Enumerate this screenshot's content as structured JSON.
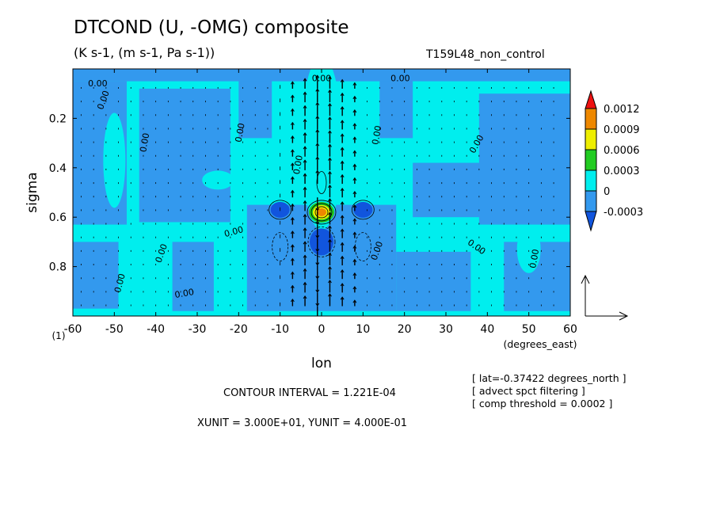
{
  "chart_data": {
    "type": "heatmap",
    "title": "DTCOND (U, -OMG) composite",
    "subtitle": "(K s-1, (m s-1, Pa s-1))",
    "run_label": "T159L48_non_control",
    "xlabel": "lon",
    "x_units": "(degrees_east)",
    "ylabel": "sigma",
    "corner_label": "(1)",
    "xlim": [
      -60,
      60
    ],
    "ylim": [
      1.0,
      0.0
    ],
    "x_ticks": [
      -60,
      -50,
      -40,
      -30,
      -20,
      -10,
      0,
      10,
      20,
      30,
      40,
      50,
      60
    ],
    "x_tick_labels": [
      "-60",
      "-50",
      "-40",
      "-30",
      "-20",
      "-10",
      "0",
      "10",
      "20",
      "30",
      "40",
      "50",
      "60"
    ],
    "y_ticks": [
      0.2,
      0.4,
      0.6,
      0.8
    ],
    "y_tick_labels": [
      "0.2",
      "0.4",
      "0.6",
      "0.8"
    ],
    "colorbar": {
      "levels": [
        "0.0012",
        "0.0009",
        "0.0006",
        "0.0003",
        "0",
        "-0.0003"
      ],
      "colors": [
        "#ee1111",
        "#ee8800",
        "#eeee00",
        "#22cc22",
        "#00eeee",
        "#3399ee",
        "#1155dd"
      ]
    },
    "contour_labels": [
      "0.00"
    ],
    "contour_interval": "CONTOUR INTERVAL = 1.221E-04",
    "vector_units": "XUNIT = 3.000E+01, YUNIT = 4.000E-01",
    "info_lines": [
      "[ lat=-0.37422 degrees_north ]",
      "[ advect spct filtering ]",
      "[ comp threshold = 0.0002 ]"
    ],
    "features": [
      {
        "lon": 0,
        "sigma": 0.58,
        "kind": "positive maximum"
      },
      {
        "lon": -10,
        "sigma": 0.57,
        "kind": "negative minimum"
      },
      {
        "lon": 10,
        "sigma": 0.57,
        "kind": "negative minimum"
      },
      {
        "lon": 0,
        "sigma": 0.7,
        "kind": "negative minimum"
      }
    ]
  }
}
